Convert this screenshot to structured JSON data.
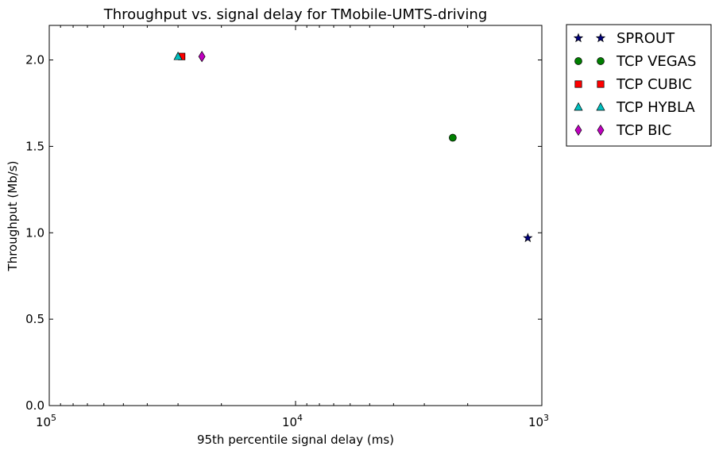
{
  "chart_data": {
    "type": "scatter",
    "title": "Throughput vs. signal delay for TMobile-UMTS-driving",
    "xlabel": "95th percentile signal delay (ms)",
    "ylabel": "Throughput (Mb/s)",
    "x_scale": "log",
    "x_reversed": true,
    "xlim": [
      100000,
      1000
    ],
    "ylim": [
      0,
      2.2
    ],
    "x_ticks": [
      {
        "value": 100000,
        "base": "10",
        "exp": "5"
      },
      {
        "value": 10000,
        "base": "10",
        "exp": "4"
      },
      {
        "value": 1000,
        "base": "10",
        "exp": "3"
      }
    ],
    "y_ticks": [
      {
        "value": 0,
        "label": "0.0"
      },
      {
        "value": 0.5,
        "label": "0.5"
      },
      {
        "value": 1,
        "label": "1.0"
      },
      {
        "value": 1.5,
        "label": "1.5"
      },
      {
        "value": 2,
        "label": "2.0"
      }
    ],
    "grid": false,
    "legend_position": "outside-right",
    "series": [
      {
        "name": "SPROUT",
        "marker": "star",
        "color": "#00007f",
        "points": [
          {
            "x": 1140,
            "y": 0.97
          }
        ]
      },
      {
        "name": "TCP VEGAS",
        "marker": "circle",
        "color": "#007f00",
        "points": [
          {
            "x": 2300,
            "y": 1.55
          }
        ]
      },
      {
        "name": "TCP CUBIC",
        "marker": "square",
        "color": "#ff0000",
        "points": [
          {
            "x": 29000,
            "y": 2.02
          }
        ]
      },
      {
        "name": "TCP HYBLA",
        "marker": "triangle",
        "color": "#00bfbf",
        "points": [
          {
            "x": 30000,
            "y": 2.02
          }
        ]
      },
      {
        "name": "TCP BIC",
        "marker": "diamond",
        "color": "#bf00bf",
        "points": [
          {
            "x": 24000,
            "y": 2.02
          }
        ]
      }
    ]
  }
}
